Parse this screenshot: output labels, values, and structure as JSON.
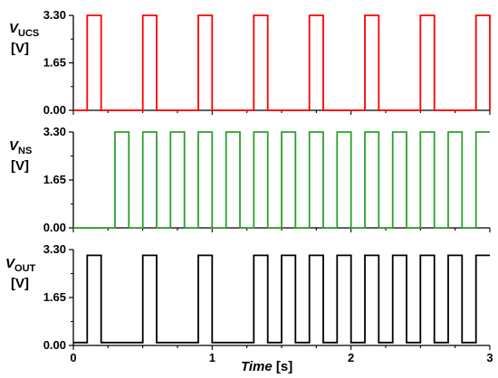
{
  "chart_data": [
    {
      "type": "line",
      "ylabel": {
        "symbol": "V",
        "subscript": "UCS",
        "unit": "[V]"
      },
      "yticks": [
        "0.00",
        "1.65",
        "3.30"
      ],
      "ylim": [
        0,
        3.3
      ],
      "xlim": [
        0,
        3
      ],
      "color": "#ff0000",
      "step_x": [
        0,
        0.1,
        0.2,
        0.5,
        0.6,
        0.9,
        1.0,
        1.3,
        1.4,
        1.7,
        1.8,
        2.1,
        2.2,
        2.5,
        2.6,
        2.9,
        3.0
      ],
      "step_y": [
        0,
        3.3,
        0,
        3.3,
        0,
        3.3,
        0,
        3.3,
        0,
        3.3,
        0,
        3.3,
        0,
        3.3,
        0,
        3.3,
        0
      ]
    },
    {
      "type": "line",
      "ylabel": {
        "symbol": "V",
        "subscript": "NS",
        "unit": "[V]"
      },
      "yticks": [
        "0.00",
        "1.65",
        "3.30"
      ],
      "ylim": [
        0,
        3.3
      ],
      "xlim": [
        0,
        3
      ],
      "color": "#2ca02c",
      "step_x": [
        0,
        0.3,
        0.4,
        0.5,
        0.6,
        0.7,
        0.8,
        0.9,
        1.0,
        1.1,
        1.2,
        1.3,
        1.4,
        1.5,
        1.6,
        1.7,
        1.8,
        1.9,
        2.0,
        2.1,
        2.2,
        2.3,
        2.4,
        2.5,
        2.6,
        2.7,
        2.8,
        2.9,
        3.0
      ],
      "step_y": [
        0,
        3.3,
        0,
        3.3,
        0,
        3.3,
        0,
        3.3,
        0,
        3.3,
        0,
        3.3,
        0,
        3.3,
        0,
        3.3,
        0,
        3.3,
        0,
        3.3,
        0,
        3.3,
        0,
        3.3,
        0,
        3.3,
        0,
        3.3,
        3.3
      ]
    },
    {
      "type": "line",
      "ylabel": {
        "symbol": "V",
        "subscript": "OUT",
        "unit": "[V]"
      },
      "yticks": [
        "0.00",
        "1.65",
        "3.30"
      ],
      "ylim": [
        0,
        3.3
      ],
      "xlim": [
        0,
        3
      ],
      "xticks": [
        "0",
        "1",
        "2",
        "3"
      ],
      "xlabel": {
        "name": "Time",
        "unit": "[s]"
      },
      "color": "#000000",
      "step_x": [
        0,
        0.1,
        0.2,
        0.5,
        0.6,
        0.9,
        1.0,
        1.3,
        1.4,
        1.5,
        1.6,
        1.7,
        1.8,
        1.9,
        2.0,
        2.1,
        2.2,
        2.3,
        2.4,
        2.5,
        2.6,
        2.7,
        2.8,
        2.9,
        3.0
      ],
      "step_y": [
        0.1,
        3.1,
        0.1,
        3.1,
        0.1,
        3.1,
        0.1,
        3.1,
        0.1,
        3.1,
        0.1,
        3.1,
        0.1,
        3.1,
        0.1,
        3.1,
        0.1,
        3.1,
        0.1,
        3.1,
        0.1,
        3.1,
        0.1,
        3.1,
        3.1
      ]
    }
  ]
}
